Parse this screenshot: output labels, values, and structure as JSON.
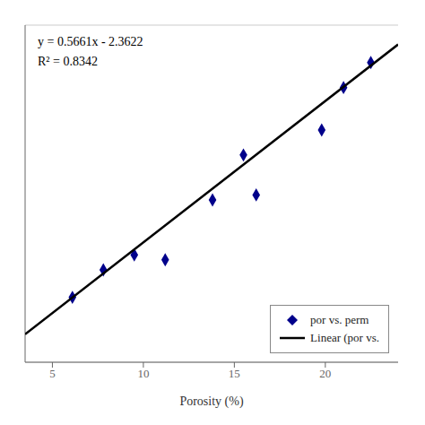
{
  "chart_data": {
    "type": "scatter",
    "xlabel": "Porosity (%)",
    "xlim": [
      3.5,
      24
    ],
    "xticks": [
      5,
      10,
      15,
      20
    ],
    "ylim": [
      -1.5,
      12
    ],
    "yticks": [
      -1.5,
      0.4,
      2.3,
      4.2,
      6.1,
      8.0,
      9.9,
      11.8
    ],
    "grid": true,
    "tick_labels": "x",
    "legend": "lower right",
    "annotations": [
      "y = 0.5661x - 2.3622",
      "R² = 0.8342"
    ],
    "series": [
      {
        "name": "por vs. perm",
        "type": "scatter",
        "marker": "diamond",
        "color": "#00008B",
        "x": [
          6.1,
          7.8,
          9.5,
          11.2,
          13.8,
          15.5,
          16.2,
          19.8,
          21.0,
          22.5
        ],
        "values": [
          1.1,
          2.2,
          2.8,
          2.6,
          5.0,
          6.8,
          5.2,
          7.8,
          9.5,
          10.5
        ]
      },
      {
        "name": "Linear (por vs.",
        "type": "line",
        "color": "#000000",
        "x": [
          3.5,
          24
        ],
        "values": [
          -0.38085,
          11.2242
        ]
      }
    ]
  }
}
